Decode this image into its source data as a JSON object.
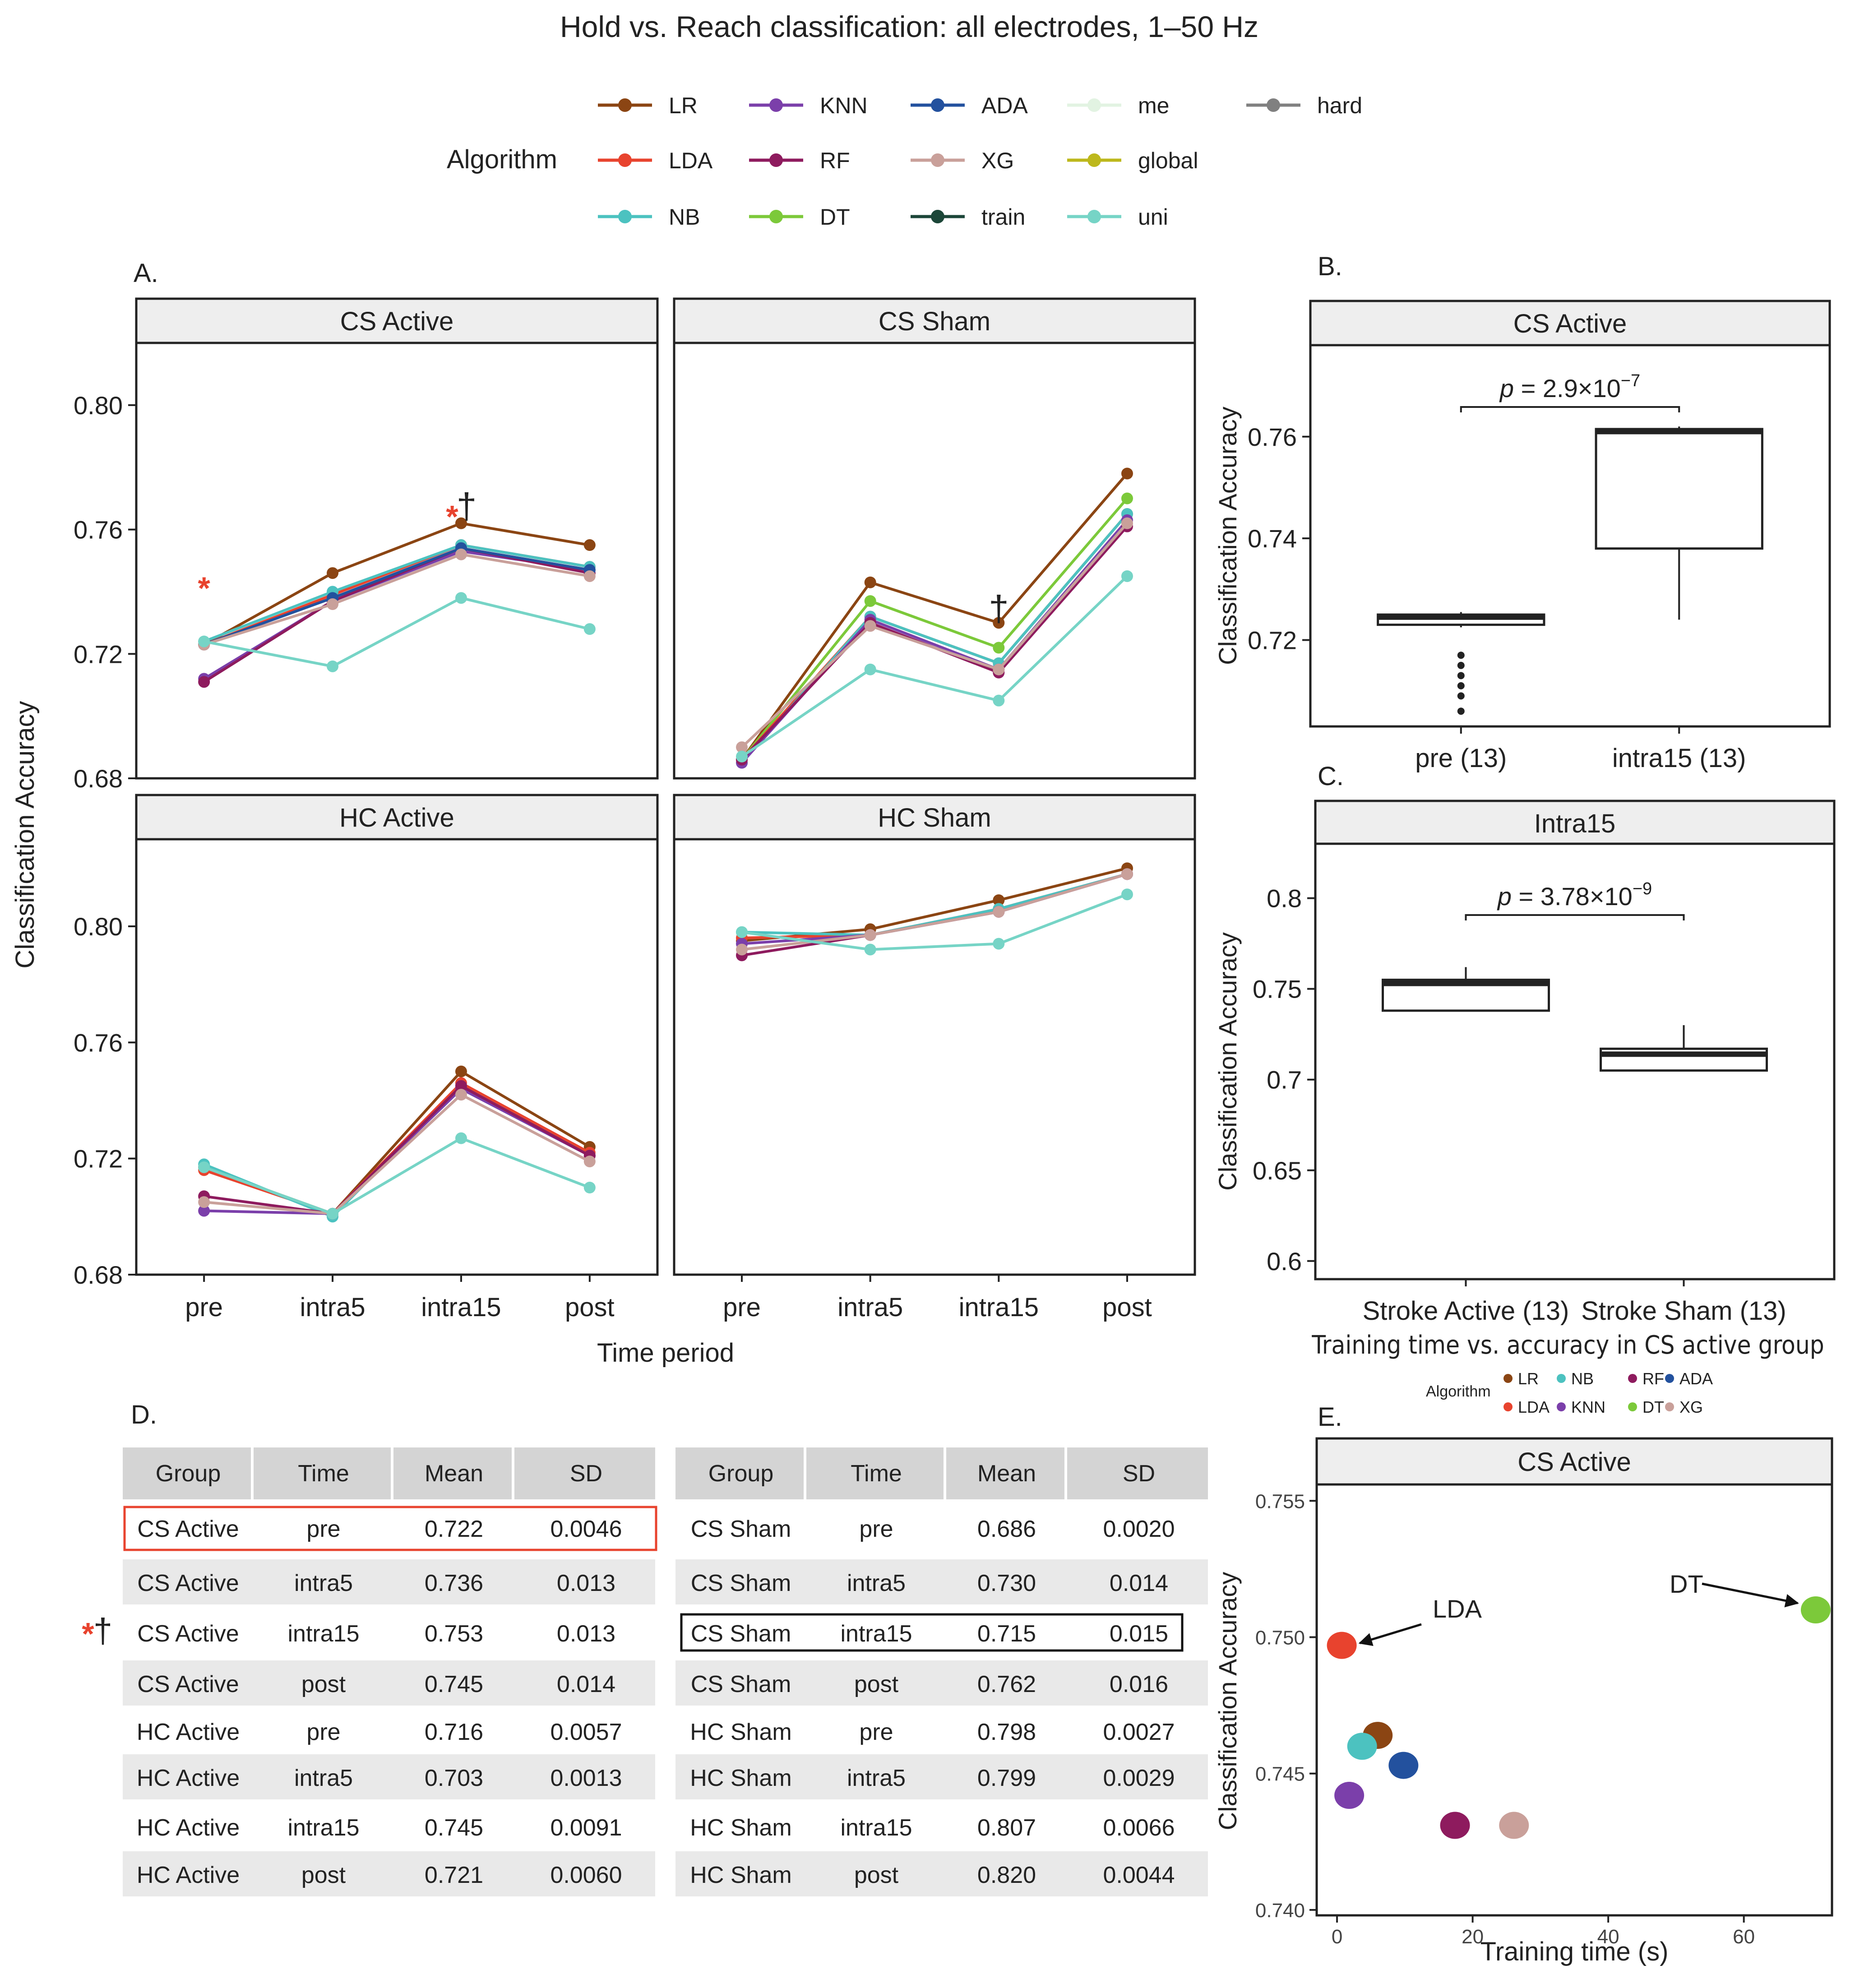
{
  "chart_data": {
    "title": "Hold vs. Reach classification: all electrodes, 1–50 Hz",
    "legend": {
      "title": "Algorithm",
      "items": [
        {
          "name": "LR",
          "color": "#8B4513"
        },
        {
          "name": "LDA",
          "color": "#E8432E"
        },
        {
          "name": "NB",
          "color": "#4CC2C0"
        },
        {
          "name": "KNN",
          "color": "#7B3FAA"
        },
        {
          "name": "RF",
          "color": "#8E1B5E"
        },
        {
          "name": "DT",
          "color": "#7CC93A"
        },
        {
          "name": "ADA",
          "color": "#23519E"
        },
        {
          "name": "XG",
          "color": "#C9A09A"
        },
        {
          "name": "train",
          "color": "#1C4638"
        },
        {
          "name": "me",
          "color": "#E2F3E2"
        },
        {
          "name": "global",
          "color": "#BDB81C"
        },
        {
          "name": "uni",
          "color": "#76D4C6"
        },
        {
          "name": "hard",
          "color": "#808080"
        }
      ]
    },
    "panelA": {
      "label": "A.",
      "type": "line",
      "categories": [
        "pre",
        "intra5",
        "intra15",
        "post"
      ],
      "xlabel": "Time period",
      "ylabel": "Classification Accuracy",
      "top_row": {
        "ylim": [
          0.68,
          0.82
        ],
        "ticks": [
          "0.68",
          "0.72",
          "0.76",
          "0.80"
        ]
      },
      "bottom_row": {
        "ylim": [
          0.68,
          0.83
        ],
        "ticks": [
          "0.68",
          "0.72",
          "0.76",
          "0.80"
        ]
      },
      "facets": [
        {
          "title": "CS Active",
          "row": "top",
          "col": 0,
          "annotations": [
            {
              "at": "pre",
              "y": 0.742,
              "text": "*"
            },
            {
              "at": "intra15",
              "y": 0.765,
              "text": "*†"
            }
          ],
          "series": [
            {
              "name": "LR",
              "values": [
                0.723,
                0.746,
                0.762,
                0.755
              ]
            },
            {
              "name": "LDA",
              "values": [
                0.723,
                0.739,
                0.755,
                0.748
              ]
            },
            {
              "name": "NB",
              "values": [
                0.724,
                0.74,
                0.755,
                0.748
              ]
            },
            {
              "name": "KNN",
              "values": [
                0.712,
                0.737,
                0.753,
                0.747
              ]
            },
            {
              "name": "RF",
              "values": [
                0.711,
                0.737,
                0.754,
                0.746
              ]
            },
            {
              "name": "ADA",
              "values": [
                0.723,
                0.738,
                0.754,
                0.747
              ]
            },
            {
              "name": "XG",
              "values": [
                0.723,
                0.736,
                0.752,
                0.745
              ]
            },
            {
              "name": "uni",
              "values": [
                0.724,
                0.716,
                0.738,
                0.728
              ]
            }
          ]
        },
        {
          "title": "CS Sham",
          "row": "top",
          "col": 1,
          "annotations": [
            {
              "at": "intra15",
              "y": 0.735,
              "text": "†"
            }
          ],
          "series": [
            {
              "name": "LR",
              "values": [
                0.686,
                0.743,
                0.73,
                0.778
              ]
            },
            {
              "name": "DT",
              "values": [
                0.686,
                0.737,
                0.722,
                0.77
              ]
            },
            {
              "name": "LDA",
              "values": [
                0.686,
                0.732,
                0.717,
                0.765
              ]
            },
            {
              "name": "NB",
              "values": [
                0.685,
                0.732,
                0.717,
                0.765
              ]
            },
            {
              "name": "KNN",
              "values": [
                0.685,
                0.731,
                0.715,
                0.763
              ]
            },
            {
              "name": "RF",
              "values": [
                0.686,
                0.73,
                0.714,
                0.761
              ]
            },
            {
              "name": "XG",
              "values": [
                0.69,
                0.729,
                0.715,
                0.762
              ]
            },
            {
              "name": "uni",
              "values": [
                0.687,
                0.715,
                0.705,
                0.745
              ]
            }
          ]
        },
        {
          "title": "HC Active",
          "row": "bottom",
          "col": 0,
          "annotations": [],
          "series": [
            {
              "name": "LR",
              "values": [
                0.717,
                0.701,
                0.75,
                0.724
              ]
            },
            {
              "name": "LDA",
              "values": [
                0.716,
                0.701,
                0.746,
                0.722
              ]
            },
            {
              "name": "NB",
              "values": [
                0.718,
                0.7,
                0.745,
                0.721
              ]
            },
            {
              "name": "KNN",
              "values": [
                0.702,
                0.701,
                0.744,
                0.721
              ]
            },
            {
              "name": "RF",
              "values": [
                0.707,
                0.701,
                0.745,
                0.721
              ]
            },
            {
              "name": "XG",
              "values": [
                0.705,
                0.701,
                0.742,
                0.719
              ]
            },
            {
              "name": "uni",
              "values": [
                0.717,
                0.701,
                0.727,
                0.71
              ]
            }
          ]
        },
        {
          "title": "HC Sham",
          "row": "bottom",
          "col": 1,
          "annotations": [],
          "series": [
            {
              "name": "LR",
              "values": [
                0.795,
                0.799,
                0.809,
                0.82
              ]
            },
            {
              "name": "LDA",
              "values": [
                0.796,
                0.797,
                0.806,
                0.818
              ]
            },
            {
              "name": "NB",
              "values": [
                0.798,
                0.797,
                0.806,
                0.818
              ]
            },
            {
              "name": "KNN",
              "values": [
                0.794,
                0.797,
                0.805,
                0.818
              ]
            },
            {
              "name": "RF",
              "values": [
                0.79,
                0.797,
                0.805,
                0.818
              ]
            },
            {
              "name": "XG",
              "values": [
                0.792,
                0.797,
                0.805,
                0.818
              ]
            },
            {
              "name": "uni",
              "values": [
                0.798,
                0.792,
                0.794,
                0.811
              ]
            }
          ]
        }
      ]
    },
    "panelB": {
      "label": "B.",
      "title": "CS Active",
      "type": "box",
      "ylabel": "Classification Accuracy",
      "ylim": [
        0.703,
        0.778
      ],
      "ticks": [
        "0.72",
        "0.74",
        "0.76"
      ],
      "p_label": "p = 2.9×10",
      "p_exp": "−7",
      "groups": [
        {
          "label": "pre (13)",
          "min": 0.7225,
          "q1": 0.723,
          "median": 0.7245,
          "q3": 0.725,
          "max": 0.7255,
          "outliers": [
            0.717,
            0.715,
            0.713,
            0.711,
            0.709,
            0.706
          ]
        },
        {
          "label": "intra15 (13)",
          "min": 0.724,
          "q1": 0.738,
          "median": 0.761,
          "q3": 0.7615,
          "max": 0.762,
          "outliers": []
        }
      ]
    },
    "panelC": {
      "label": "C.",
      "title": "Intra15",
      "type": "box",
      "ylabel": "Classification Accuracy",
      "ylim": [
        0.59,
        0.83
      ],
      "ticks": [
        "0.6",
        "0.65",
        "0.7",
        "0.75",
        "0.8"
      ],
      "p_label": "p = 3.78×10",
      "p_exp": "−9",
      "groups": [
        {
          "label": "Stroke Active (13)",
          "min": 0.738,
          "q1": 0.738,
          "median": 0.753,
          "q3": 0.755,
          "max": 0.762,
          "outliers": []
        },
        {
          "label": "Stroke Sham (13)",
          "min": 0.705,
          "q1": 0.705,
          "median": 0.714,
          "q3": 0.717,
          "max": 0.73,
          "outliers": []
        }
      ]
    },
    "panelD": {
      "label": "D.",
      "type": "table",
      "columns": [
        "Group",
        "Time",
        "Mean",
        "SD"
      ],
      "left": [
        [
          "CS Active",
          "pre",
          "0.722",
          "0.0046"
        ],
        [
          "CS Active",
          "intra5",
          "0.736",
          "0.013"
        ],
        [
          "CS Active",
          "intra15",
          "0.753",
          "0.013"
        ],
        [
          "CS Active",
          "post",
          "0.745",
          "0.014"
        ],
        [
          "HC Active",
          "pre",
          "0.716",
          "0.0057"
        ],
        [
          "HC Active",
          "intra5",
          "0.703",
          "0.0013"
        ],
        [
          "HC Active",
          "intra15",
          "0.745",
          "0.0091"
        ],
        [
          "HC Active",
          "post",
          "0.721",
          "0.0060"
        ]
      ],
      "right": [
        [
          "CS Sham",
          "pre",
          "0.686",
          "0.0020"
        ],
        [
          "CS Sham",
          "intra5",
          "0.730",
          "0.014"
        ],
        [
          "CS Sham",
          "intra15",
          "0.715",
          "0.015"
        ],
        [
          "CS Sham",
          "post",
          "0.762",
          "0.016"
        ],
        [
          "HC Sham",
          "pre",
          "0.798",
          "0.0027"
        ],
        [
          "HC Sham",
          "intra5",
          "0.799",
          "0.0029"
        ],
        [
          "HC Sham",
          "intra15",
          "0.807",
          "0.0066"
        ],
        [
          "HC Sham",
          "post",
          "0.820",
          "0.0044"
        ]
      ],
      "row_marker": "*†"
    },
    "panelE": {
      "label": "E.",
      "suptitle": "Training time vs. accuracy in CS active group",
      "title": "CS Active",
      "type": "scatter",
      "xlabel": "Training time (s)",
      "ylabel": "Classification Accuracy",
      "xlim": [
        -3,
        73
      ],
      "ylim": [
        0.7398,
        0.7556
      ],
      "xticks": [
        0,
        20,
        40,
        60
      ],
      "yticks": [
        "0.740",
        "0.745",
        "0.750",
        "0.755"
      ],
      "legend_title": "Algorithm",
      "points": [
        {
          "name": "LR",
          "x": 6.0,
          "y": 0.7464,
          "color": "#8B4513"
        },
        {
          "name": "NB",
          "x": 3.7,
          "y": 0.746,
          "color": "#4CC2C0"
        },
        {
          "name": "RF",
          "x": 17.4,
          "y": 0.7431,
          "color": "#8E1B5E"
        },
        {
          "name": "ADA",
          "x": 9.8,
          "y": 0.7453,
          "color": "#23519E"
        },
        {
          "name": "LDA",
          "x": 0.7,
          "y": 0.7497,
          "color": "#E8432E"
        },
        {
          "name": "KNN",
          "x": 1.8,
          "y": 0.7442,
          "color": "#7B3FAA"
        },
        {
          "name": "DT",
          "x": 70.6,
          "y": 0.751,
          "color": "#7CC93A"
        },
        {
          "name": "XG",
          "x": 26.1,
          "y": 0.7431,
          "color": "#C9A09A"
        }
      ],
      "callouts": [
        {
          "name": "LDA",
          "text": "LDA"
        },
        {
          "name": "DT",
          "text": "DT"
        }
      ]
    }
  }
}
